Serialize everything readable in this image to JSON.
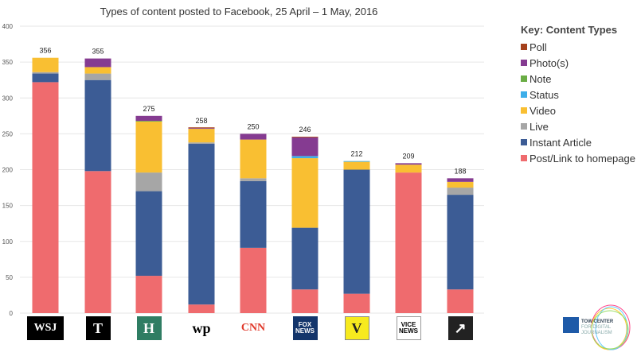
{
  "chart_data": {
    "type": "bar",
    "stacked": true,
    "title": "Types of content posted to Facebook, 25 April – 1 May, 2016",
    "xlabel": "",
    "ylabel": "",
    "ylim": [
      0,
      400
    ],
    "yticks": [
      0,
      50,
      100,
      150,
      200,
      250,
      300,
      350,
      400
    ],
    "grid": true,
    "legend_title": "Key: Content Types",
    "legend_position": "right",
    "categories": [
      "WSJ",
      "The New York Times",
      "HuffPost",
      "The Washington Post",
      "CNN",
      "Fox News",
      "Vox",
      "Vice News",
      "Mashable"
    ],
    "totals": [
      356,
      355,
      275,
      258,
      250,
      246,
      212,
      209,
      188
    ],
    "series": [
      {
        "name": "Post/Link to homepage",
        "color": "#ef6b6e",
        "values": [
          322,
          198,
          52,
          12,
          91,
          33,
          27,
          196,
          33
        ]
      },
      {
        "name": "Instant Article",
        "color": "#3c5c95",
        "values": [
          12,
          127,
          118,
          224,
          93,
          86,
          173,
          0,
          132
        ]
      },
      {
        "name": "Live",
        "color": "#a6a6a6",
        "values": [
          2,
          9,
          26,
          2,
          4,
          0,
          0,
          0,
          10
        ]
      },
      {
        "name": "Video",
        "color": "#f9bf32",
        "values": [
          20,
          9,
          71,
          19,
          54,
          97,
          11,
          11,
          8
        ]
      },
      {
        "name": "Status",
        "color": "#3daee9",
        "values": [
          0,
          0,
          0,
          0,
          0,
          3,
          1,
          0,
          0
        ]
      },
      {
        "name": "Note",
        "color": "#6aad45",
        "values": [
          0,
          0,
          1,
          0,
          0,
          0,
          0,
          0,
          0
        ]
      },
      {
        "name": "Photo(s)",
        "color": "#853b91",
        "values": [
          0,
          12,
          7,
          1,
          8,
          26,
          0,
          2,
          5
        ]
      },
      {
        "name": "Poll",
        "color": "#a5411c",
        "values": [
          0,
          0,
          0,
          1,
          0,
          1,
          0,
          0,
          0
        ]
      }
    ],
    "legend_order": [
      "Poll",
      "Photo(s)",
      "Note",
      "Status",
      "Video",
      "Live",
      "Instant Article",
      "Post/Link to homepage"
    ]
  },
  "logos": [
    {
      "text": "WSJ",
      "bg": "#000",
      "fg": "#fff"
    },
    {
      "text": "T",
      "bg": "#000",
      "fg": "#fff"
    },
    {
      "text": "H",
      "bg": "#2f7d63",
      "fg": "#fff"
    },
    {
      "text": "wp",
      "bg": "#fff",
      "fg": "#000"
    },
    {
      "text": "CNN",
      "bg": "#fff",
      "fg": "#e0392b"
    },
    {
      "text": "FOX NEWS",
      "bg": "#13356b",
      "fg": "#fff"
    },
    {
      "text": "V",
      "bg": "#f7ea1e",
      "fg": "#222"
    },
    {
      "text": "VICE NEWS",
      "bg": "#fff",
      "fg": "#000"
    },
    {
      "text": "↗",
      "bg": "#222",
      "fg": "#fff"
    }
  ],
  "tow_logo": "TOW CENTER FOR DIGITAL JOURNALISM"
}
